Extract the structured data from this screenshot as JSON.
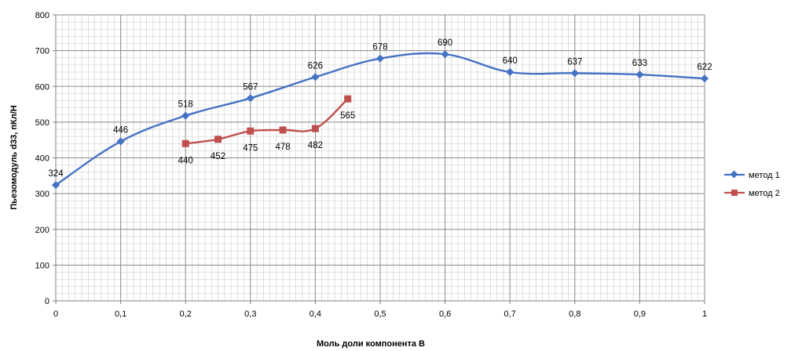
{
  "chart_data": {
    "type": "line",
    "xlabel": "Моль доли компонента B",
    "ylabel": "Пьезомодуль d33, пКл/Н",
    "xlim": [
      0,
      1
    ],
    "ylim": [
      0,
      800
    ],
    "x_ticks": [
      0,
      0.1,
      0.2,
      0.3,
      0.4,
      0.5,
      0.6,
      0.7,
      0.8,
      0.9,
      1
    ],
    "x_tick_labels": [
      "0",
      "0,1",
      "0,2",
      "0,3",
      "0,4",
      "0,5",
      "0,6",
      "0,7",
      "0,8",
      "0,9",
      "1"
    ],
    "y_ticks": [
      0,
      100,
      200,
      300,
      400,
      500,
      600,
      700,
      800
    ],
    "grid": true,
    "smooth": true,
    "legend_position": "right",
    "series": [
      {
        "name": "метод 1",
        "color": "#4472c4",
        "marker": "diamond",
        "x": [
          0,
          0.1,
          0.2,
          0.3,
          0.4,
          0.5,
          0.6,
          0.7,
          0.8,
          0.9,
          1
        ],
        "y": [
          324,
          446,
          518,
          567,
          626,
          678,
          690,
          640,
          637,
          633,
          622
        ],
        "labels": [
          "324",
          "446",
          "518",
          "567",
          "626",
          "678",
          "690",
          "640",
          "637",
          "633",
          "622"
        ],
        "label_position": "above"
      },
      {
        "name": "метод 2",
        "color": "#c0504d",
        "marker": "square",
        "x": [
          0.2,
          0.25,
          0.3,
          0.35,
          0.4,
          0.45
        ],
        "y": [
          440,
          452,
          475,
          478,
          482,
          565
        ],
        "labels": [
          "440",
          "452",
          "475",
          "478",
          "482",
          "565"
        ],
        "label_position": "below"
      }
    ]
  }
}
